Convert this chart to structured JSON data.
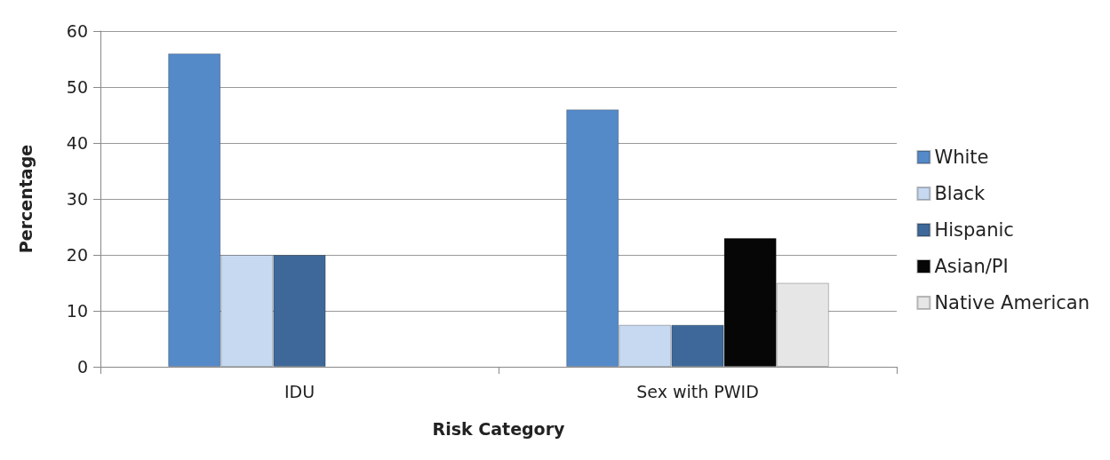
{
  "chart_data": {
    "type": "bar",
    "xlabel": "Risk Category",
    "ylabel": "Percentage",
    "categories": [
      "IDU",
      "Sex with PWID"
    ],
    "series": [
      {
        "name": "White",
        "color": "#558ac9",
        "values": [
          56,
          46
        ]
      },
      {
        "name": "Black",
        "color": "#c6d9f0",
        "values": [
          20,
          7.5
        ]
      },
      {
        "name": "Hispanic",
        "color": "#3e6899",
        "values": [
          20,
          7.5
        ]
      },
      {
        "name": "Asian/PI",
        "color": "#060606",
        "values": [
          null,
          23
        ]
      },
      {
        "name": "Native American",
        "color": "#e6e6e6",
        "values": [
          null,
          15
        ]
      }
    ],
    "ylim": [
      0,
      60
    ],
    "yticks": [
      0,
      10,
      20,
      30,
      40,
      50,
      60
    ],
    "grid": "y",
    "legend": "right"
  }
}
